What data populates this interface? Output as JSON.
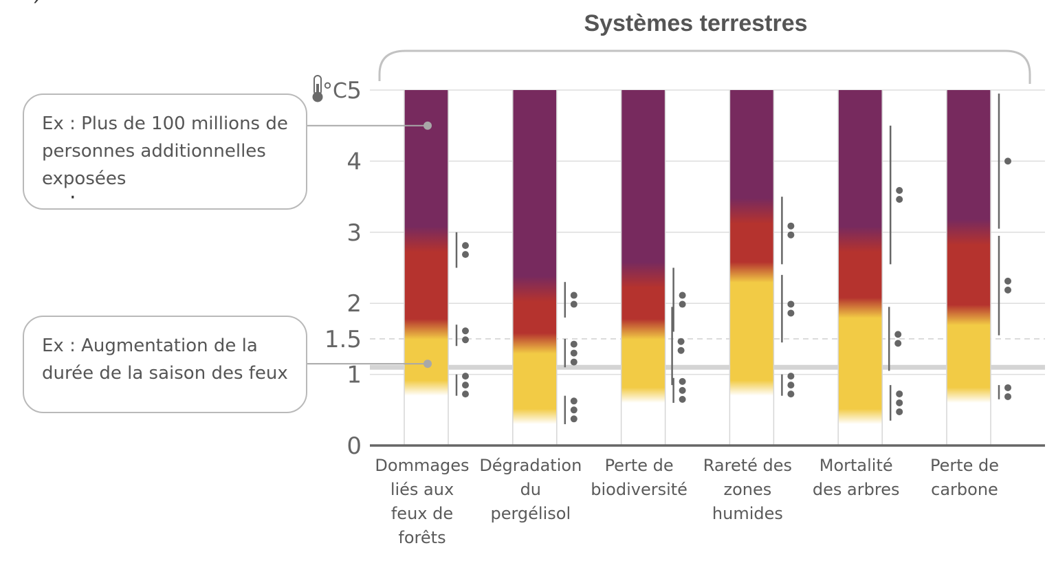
{
  "chart_data": {
    "type": "bar",
    "title": "Systèmes terrestres",
    "unit_label": "°C",
    "icon": "thermometer-icon",
    "y_ticks": [
      "0",
      "1",
      "1.5",
      "2",
      "3",
      "4",
      "5"
    ],
    "ylim": [
      0,
      5
    ],
    "reference_lines": [
      {
        "value": 1.5,
        "style": "dashed"
      },
      {
        "value": 1.1,
        "style": "solid-thick"
      }
    ],
    "categories": [
      "Dommages liés aux feux de forêts",
      "Dégradation du pergélisol",
      "Perte de biodiversité",
      "Rareté des zones humides",
      "Mortalité des arbres",
      "Perte de carbone"
    ],
    "category_lines": [
      [
        "Dommages",
        "liés aux",
        "feux de",
        "forêts"
      ],
      [
        "Dégradation",
        "du",
        "pergélisol"
      ],
      [
        "Perte de",
        "biodiversité"
      ],
      [
        "Rareté des",
        "zones",
        "humides"
      ],
      [
        "Mortalité",
        "des arbres"
      ],
      [
        "Perte de",
        "carbone"
      ]
    ],
    "colors": {
      "undetectable": "#ffffff",
      "moderate": "#f2cb45",
      "high": "#b5332e",
      "very_high": "#772a5e"
    },
    "bars": [
      {
        "start": 0.7,
        "moderate_to_high": 1.6,
        "high_to_very_high": 2.9,
        "top": 5
      },
      {
        "start": 0.3,
        "moderate_to_high": 1.4,
        "high_to_very_high": 2.2,
        "top": 5
      },
      {
        "start": 0.6,
        "moderate_to_high": 1.6,
        "high_to_very_high": 2.4,
        "top": 5
      },
      {
        "start": 0.7,
        "moderate_to_high": 2.4,
        "high_to_very_high": 3.3,
        "top": 5
      },
      {
        "start": 0.3,
        "moderate_to_high": 1.9,
        "high_to_very_high": 2.9,
        "top": 5
      },
      {
        "start": 0.6,
        "moderate_to_high": 1.8,
        "high_to_very_high": 3.0,
        "top": 5
      }
    ],
    "confidence": [
      [
        {
          "from": 0.7,
          "to": 1.0,
          "dots": 3
        },
        {
          "from": 1.4,
          "to": 1.7,
          "dots": 2
        },
        {
          "from": 2.5,
          "to": 3.0,
          "dots": 2
        }
      ],
      [
        {
          "from": 0.3,
          "to": 0.7,
          "dots": 3
        },
        {
          "from": 1.1,
          "to": 1.5,
          "dots": 3
        },
        {
          "from": 1.8,
          "to": 2.3,
          "dots": 2
        }
      ],
      [
        {
          "from": 0.6,
          "to": 0.95,
          "dots": 3
        },
        {
          "from": 0.85,
          "to": 1.95,
          "dots": 2
        },
        {
          "from": 1.6,
          "to": 2.5,
          "dots": 2
        }
      ],
      [
        {
          "from": 0.7,
          "to": 1.0,
          "dots": 3
        },
        {
          "from": 1.45,
          "to": 2.4,
          "dots": 2
        },
        {
          "from": 2.55,
          "to": 3.5,
          "dots": 2
        }
      ],
      [
        {
          "from": 0.35,
          "to": 0.85,
          "dots": 3
        },
        {
          "from": 1.05,
          "to": 1.95,
          "dots": 2
        },
        {
          "from": 2.55,
          "to": 4.5,
          "dots": 2
        }
      ],
      [
        {
          "from": 0.65,
          "to": 0.85,
          "dots": 2
        },
        {
          "from": 1.55,
          "to": 2.95,
          "dots": 2
        },
        {
          "from": 3.05,
          "to": 4.95,
          "dots": 1
        }
      ]
    ]
  },
  "callouts": [
    {
      "text": "Ex : Plus de 100 millions de personnes additionnelles exposées",
      "target_bar": 0,
      "target_value": 4.5
    },
    {
      "text": "Ex : Augmentation de la durée de la saison des feux",
      "target_bar": 0,
      "target_value": 1.15
    }
  ],
  "stray_marks": [
    "´",
    "·"
  ]
}
